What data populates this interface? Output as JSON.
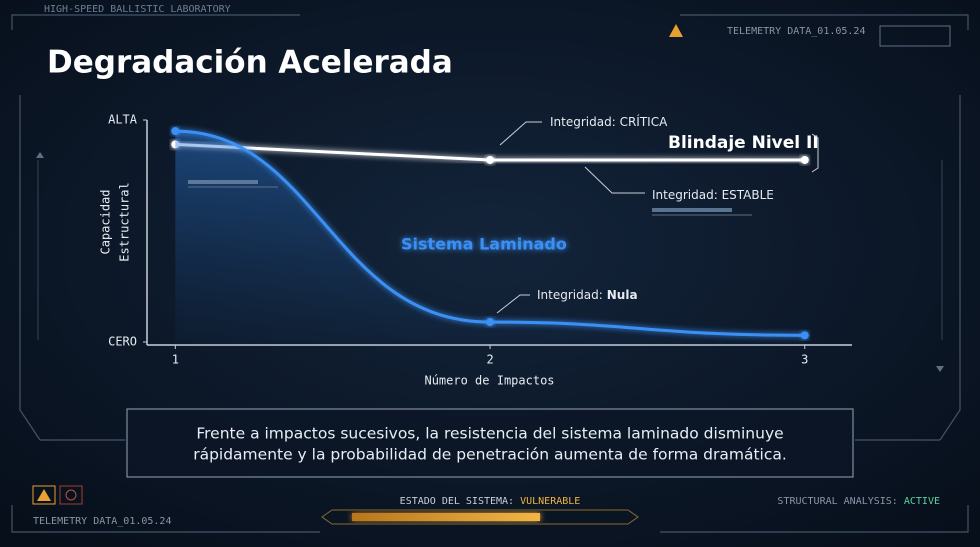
{
  "header": {
    "lab": "HIGH-SPEED BALLISTIC LABORATORY",
    "telemetry": "TELEMETRY DATA_01.05.24"
  },
  "chart_data": {
    "type": "line",
    "title": "Degradación Acelerada",
    "x_label": "Número de Impactos",
    "y_label": [
      "Capacidad",
      "Estructural"
    ],
    "x": [
      1,
      2,
      3
    ],
    "xlim": [
      0.91,
      3.15
    ],
    "xticks": [
      1,
      2,
      3
    ],
    "ylim": [
      0,
      100
    ],
    "yticks": [
      {
        "value": 0,
        "label": "CERO"
      },
      {
        "value": 100,
        "label": "ALTA"
      }
    ],
    "series": [
      {
        "name": "Blindaje Nivel II",
        "color": "#ffffff",
        "values": [
          89,
          82,
          82
        ]
      },
      {
        "name": "Sistema Laminado",
        "color": "#3a90f5",
        "values": [
          95,
          9,
          3
        ]
      }
    ],
    "annotations": [
      {
        "text": "Integridad: CRÍTICA"
      },
      {
        "text": "Integridad: ESTABLE"
      },
      {
        "text": "Integridad:",
        "strong": "Nula"
      }
    ]
  },
  "caption": [
    "Frente a impactos sucesivos, la resistencia del sistema laminado disminuye",
    "rápidamente y la probabilidad de penetración aumenta de forma dramática."
  ],
  "footer": {
    "telemetry": "TELEMETRY DATA_01.05.24",
    "status_label": "ESTADO DEL SISTEMA:",
    "status_value": "VULNERABLE",
    "analysis_label": "STRUCTURAL ANALYSIS:",
    "analysis_value": "ACTIVE"
  }
}
